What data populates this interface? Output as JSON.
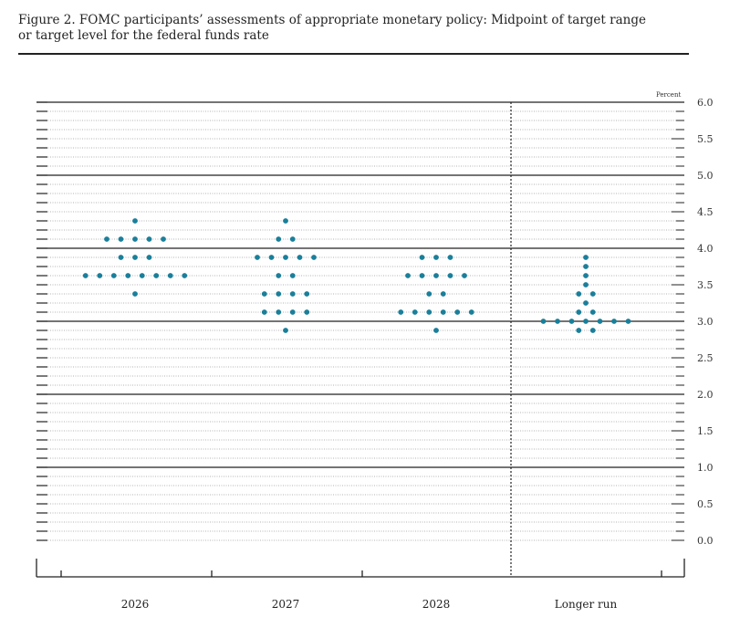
{
  "figure": {
    "title_line1": "Figure 2. FOMC participants’ assessments of appropriate monetary policy: Midpoint of target range",
    "title_line2": "or target level for the federal funds rate"
  },
  "chart_data": {
    "type": "scatter",
    "title": "Figure 2. FOMC participants’ assessments of appropriate monetary policy: Midpoint of target range or target level for the federal funds rate",
    "ylabel": "Percent",
    "ylim": [
      0.0,
      6.0
    ],
    "y_major_ticks": [
      "0.0",
      "0.5",
      "1.0",
      "1.5",
      "2.0",
      "2.5",
      "3.0",
      "3.5",
      "4.0",
      "4.5",
      "5.0",
      "5.5",
      "6.0"
    ],
    "y_minor_step": 0.125,
    "solid_gridlines_at": [
      1.0,
      2.0,
      3.0,
      4.0,
      5.0,
      6.0
    ],
    "dot_color": "#1a7f9a",
    "categories": [
      "2026",
      "2027",
      "2028",
      "Longer run"
    ],
    "separator_before_category": "Longer run",
    "series": [
      {
        "category": "2026",
        "dots": [
          {
            "y": 4.375,
            "count": 1
          },
          {
            "y": 4.125,
            "count": 5
          },
          {
            "y": 3.875,
            "count": 3
          },
          {
            "y": 3.625,
            "count": 8
          },
          {
            "y": 3.375,
            "count": 1
          }
        ]
      },
      {
        "category": "2027",
        "dots": [
          {
            "y": 4.375,
            "count": 1
          },
          {
            "y": 4.125,
            "count": 2
          },
          {
            "y": 3.875,
            "count": 5
          },
          {
            "y": 3.625,
            "count": 2
          },
          {
            "y": 3.375,
            "count": 4
          },
          {
            "y": 3.125,
            "count": 4
          },
          {
            "y": 2.875,
            "count": 1
          }
        ]
      },
      {
        "category": "2028",
        "dots": [
          {
            "y": 3.875,
            "count": 3
          },
          {
            "y": 3.625,
            "count": 5
          },
          {
            "y": 3.375,
            "count": 2
          },
          {
            "y": 3.125,
            "count": 6
          },
          {
            "y": 2.875,
            "count": 1
          }
        ]
      },
      {
        "category": "Longer run",
        "dots": [
          {
            "y": 3.875,
            "count": 1
          },
          {
            "y": 3.75,
            "count": 1
          },
          {
            "y": 3.625,
            "count": 1
          },
          {
            "y": 3.5,
            "count": 1
          },
          {
            "y": 3.375,
            "count": 2
          },
          {
            "y": 3.25,
            "count": 1
          },
          {
            "y": 3.125,
            "count": 2
          },
          {
            "y": 3.0,
            "count": 7
          },
          {
            "y": 2.875,
            "count": 2
          }
        ]
      }
    ]
  }
}
